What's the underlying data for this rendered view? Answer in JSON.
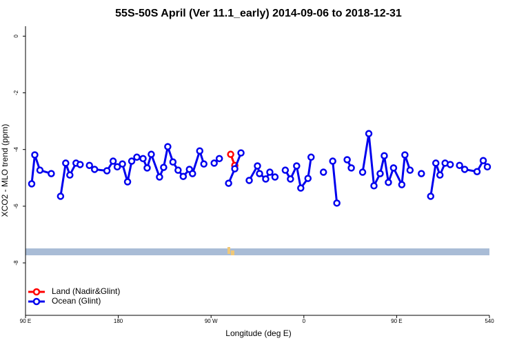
{
  "chart_data": {
    "type": "line",
    "title": "55S-50S April (Ver 11.1_early)   2014-09-06 to 2018-12-31",
    "x_label": "Longitude (deg E)",
    "y_label": "XCO2 - MLO trend (ppm)",
    "xlim": [
      90,
      540
    ],
    "ylim": [
      -9.85,
      0.35
    ],
    "xticks": [
      {
        "value": 90,
        "label": "90 E"
      },
      180,
      {
        "value": 270,
        "label": "90 W"
      },
      {
        "value": 360,
        "label": "0"
      },
      {
        "value": 450,
        "label": "90 E"
      },
      540
    ],
    "yticks": [
      0,
      -2,
      -4,
      -6,
      -8
    ],
    "legend": "bottomleft",
    "series": [
      {
        "name": "Land (Nadir&Glint)",
        "color": "#ff0000",
        "x": [
          289,
          293
        ],
        "values": [
          -4.17,
          -4.56
        ]
      },
      {
        "name": "Ocean (Glint)",
        "color": "#0000ee",
        "x": [
          96,
          99,
          104,
          115,
          null,
          124,
          129,
          133,
          139,
          143,
          null,
          152,
          157,
          169,
          175,
          179,
          184,
          189,
          193,
          198,
          204,
          208,
          212,
          220,
          224,
          228,
          233,
          238,
          243,
          249,
          252,
          259,
          263,
          null,
          273,
          278,
          null,
          287,
          293,
          299,
          null,
          307,
          315,
          317,
          323,
          327,
          332,
          null,
          342,
          347,
          353,
          357,
          364,
          367,
          null,
          379,
          null,
          388,
          392,
          null,
          402,
          406,
          null,
          417,
          423,
          428,
          434,
          438,
          442,
          447,
          455,
          458,
          463,
          null,
          474,
          null,
          483,
          488,
          492,
          497,
          502,
          null,
          511,
          516,
          528,
          534,
          538
        ],
        "values": [
          -5.21,
          -4.19,
          -4.73,
          -4.85,
          null,
          -5.65,
          -4.48,
          -4.9,
          -4.48,
          -4.53,
          null,
          -4.56,
          -4.7,
          -4.75,
          -4.41,
          -4.61,
          -4.51,
          -5.14,
          -4.41,
          -4.27,
          -4.32,
          -4.65,
          -4.17,
          -4.97,
          -4.63,
          -3.9,
          -4.44,
          -4.73,
          -4.95,
          -4.7,
          -4.85,
          -4.05,
          -4.51,
          null,
          -4.48,
          -4.32,
          null,
          -5.19,
          -4.68,
          -4.12,
          null,
          -5.09,
          -4.58,
          -4.85,
          -5.04,
          -4.8,
          -4.97,
          null,
          -4.73,
          -5.04,
          -4.58,
          -5.36,
          -5.02,
          -4.27,
          null,
          -4.8,
          null,
          -4.41,
          -5.89,
          null,
          -4.36,
          -4.65,
          null,
          -4.8,
          -3.44,
          -5.28,
          -4.85,
          -4.22,
          -5.16,
          -4.65,
          -5.24,
          -4.19,
          -4.73,
          null,
          -4.85,
          null,
          -5.65,
          -4.48,
          -4.9,
          -4.48,
          -4.53,
          null,
          -4.56,
          -4.7,
          -4.78,
          -4.39,
          -4.61
        ]
      }
    ]
  }
}
